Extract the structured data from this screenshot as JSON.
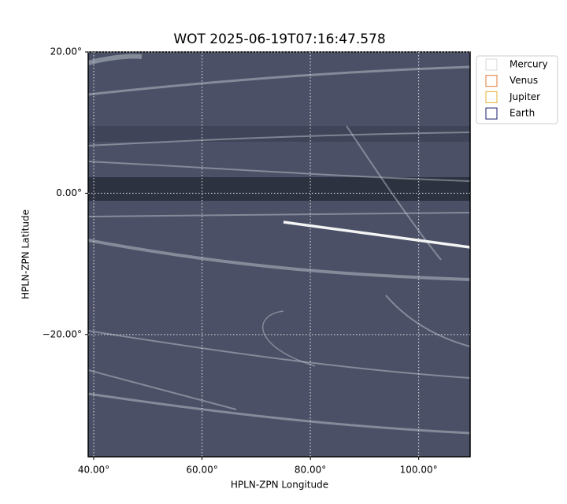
{
  "chart_data": {
    "type": "image",
    "title": "WOT 2025-06-19T07:16:47.578",
    "xlabel": "HPLN-ZPN Longitude",
    "ylabel": "HPLN-ZPN Latitude",
    "xlim": [
      38.98,
      109.5
    ],
    "ylim": [
      -37.3,
      20
    ],
    "xticks": [
      {
        "value": 40,
        "label": "40.00°"
      },
      {
        "value": 60,
        "label": "60.00°"
      },
      {
        "value": 80,
        "label": "80.00°"
      },
      {
        "value": 100,
        "label": "100.00°"
      }
    ],
    "yticks": [
      {
        "value": 20,
        "label": "20.00°"
      },
      {
        "value": 0,
        "label": "0.00°"
      },
      {
        "value": -20,
        "label": "−20.00°"
      }
    ],
    "grid": true,
    "legend_position": "upper right",
    "legend": [
      {
        "name": "Mercury",
        "color": "#d9d9d9"
      },
      {
        "name": "Venus",
        "color": "#e07b39"
      },
      {
        "name": "Jupiter",
        "color": "#e0b030"
      },
      {
        "name": "Earth",
        "color": "#1a1a6e"
      }
    ]
  }
}
